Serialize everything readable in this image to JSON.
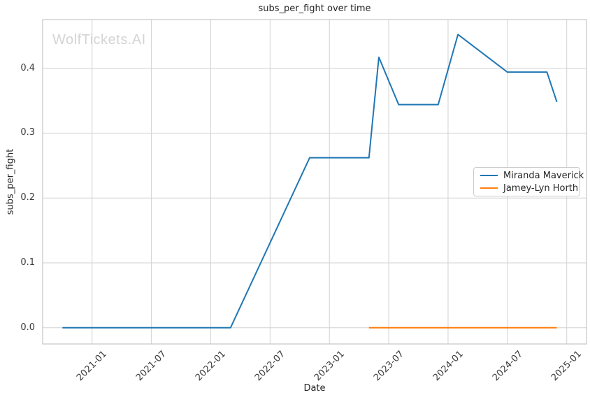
{
  "branding": {
    "watermark": "WolfTickets.AI"
  },
  "chart_data": {
    "type": "line",
    "title": "subs_per_fight over time",
    "xlabel": "Date",
    "ylabel": "subs_per_fight",
    "x_ticks": [
      "2021-01",
      "2021-07",
      "2022-01",
      "2022-07",
      "2023-01",
      "2023-07",
      "2024-01",
      "2024-07",
      "2025-01"
    ],
    "y_ticks": [
      "0.0",
      "0.1",
      "0.2",
      "0.3",
      "0.4"
    ],
    "xlim": [
      "2020-08",
      "2025-03"
    ],
    "ylim": [
      -0.025,
      0.475
    ],
    "grid": true,
    "legend_position": "center right",
    "series": [
      {
        "name": "Miranda Maverick",
        "color": "#1f77b4",
        "points": [
          {
            "x": "2020-10",
            "y": 0.0
          },
          {
            "x": "2022-03",
            "y": 0.0
          },
          {
            "x": "2022-11",
            "y": 0.262
          },
          {
            "x": "2023-05",
            "y": 0.262
          },
          {
            "x": "2023-06",
            "y": 0.417
          },
          {
            "x": "2023-08",
            "y": 0.344
          },
          {
            "x": "2023-12",
            "y": 0.344
          },
          {
            "x": "2024-02",
            "y": 0.452
          },
          {
            "x": "2024-07",
            "y": 0.394
          },
          {
            "x": "2024-11",
            "y": 0.394
          },
          {
            "x": "2024-12",
            "y": 0.348
          }
        ]
      },
      {
        "name": "Jamey-Lyn Horth",
        "color": "#ff7f0e",
        "points": [
          {
            "x": "2023-05",
            "y": 0.0
          },
          {
            "x": "2024-12",
            "y": 0.0
          }
        ]
      }
    ],
    "style": {
      "grid_color": "#d2d2d2",
      "spine_color": "#c6c6c6",
      "text_color": "#262626",
      "tick_text_color": "#3b3b3b",
      "watermark_color": "#d4d4d4",
      "background": "#ffffff",
      "line_width": 2
    }
  }
}
